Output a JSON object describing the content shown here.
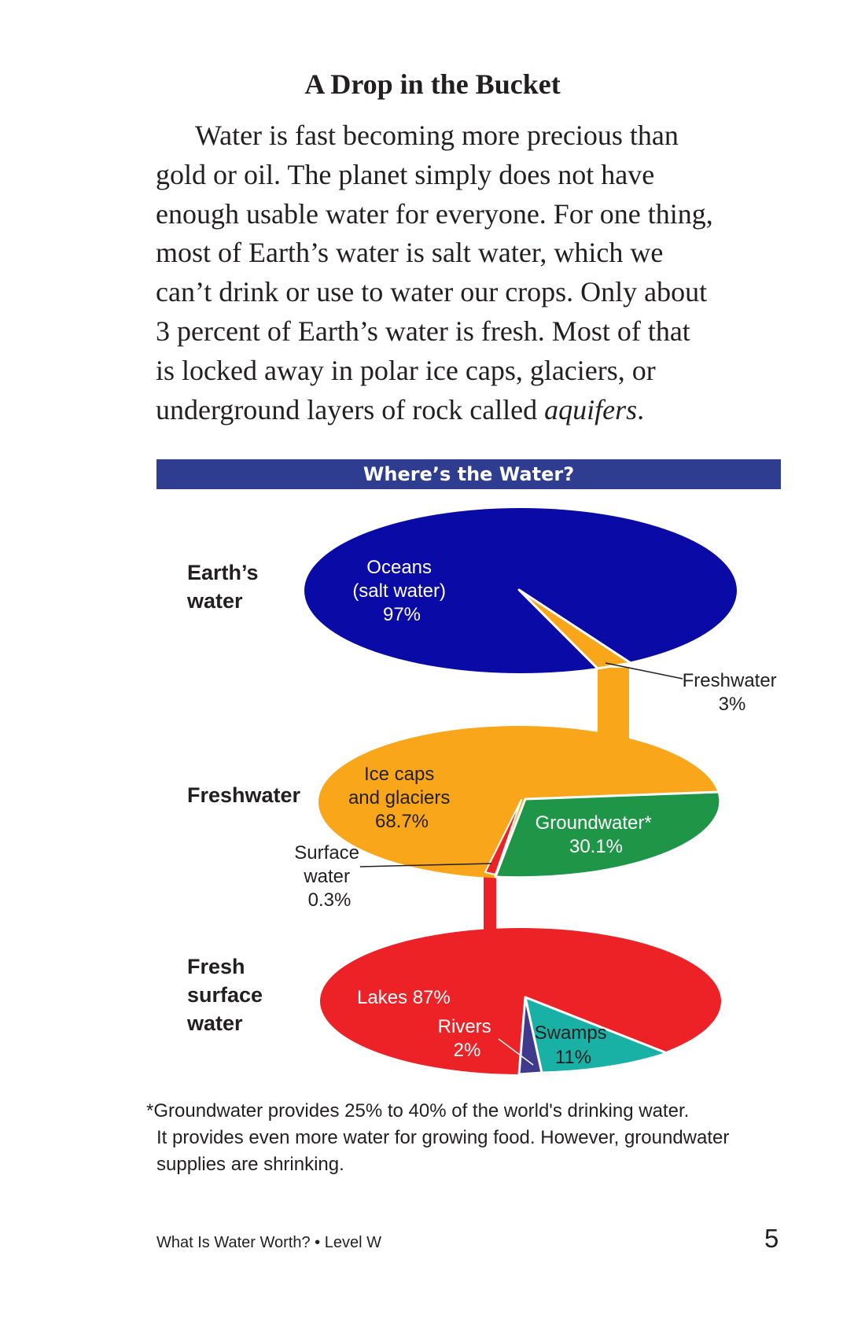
{
  "heading": "A Drop in the Bucket",
  "body": {
    "lines": [
      "Water is fast becoming more precious than",
      "gold or oil. The planet simply does not have",
      "enough usable water for everyone. For one thing,",
      "most of Earth’s water is salt water, which we",
      "can’t drink or use to water our crops. Only about",
      "3 percent of Earth’s water is fresh. Most of that",
      "is locked away in polar ice caps, glaciers, or"
    ],
    "last_line_start": "underground layers of rock called ",
    "last_line_term": "aquifers",
    "last_line_end": "."
  },
  "chart": {
    "title": "Where’s the Water?",
    "colors": {
      "salt": "#0a0aa6",
      "fresh": "#faa61a",
      "ground": "#1f9647",
      "surface": "#ec2227",
      "rivers": "#3f3a8e",
      "swamps": "#19b1a6"
    },
    "row_labels": {
      "earth_line1": "Earth’s",
      "earth_line2": "water",
      "fresh": "Freshwater",
      "surface_line1": "Fresh",
      "surface_line2": "surface",
      "surface_line3": "water"
    },
    "earth": {
      "oceans_line1": "Oceans",
      "oceans_line2": "(salt water)",
      "oceans_pct": "97%",
      "fresh_name": "Freshwater",
      "fresh_pct": "3%"
    },
    "freshwater": {
      "ice_line1": "Ice caps",
      "ice_line2": "and glaciers",
      "ice_pct": "68.7%",
      "ground_name": "Groundwater*",
      "ground_pct": "30.1%",
      "surface_line1": "Surface",
      "surface_line2": "water",
      "surface_pct": "0.3%"
    },
    "surface": {
      "lakes": "Lakes 87%",
      "rivers_name": "Rivers",
      "rivers_pct": "2%",
      "swamps_name": "Swamps",
      "swamps_pct": "11%"
    }
  },
  "chart_data": [
    {
      "type": "pie",
      "title": "Earth’s water",
      "labels": [
        "Oceans (salt water)",
        "Freshwater"
      ],
      "values": [
        97,
        3
      ]
    },
    {
      "type": "pie",
      "title": "Freshwater",
      "labels": [
        "Ice caps and glaciers",
        "Groundwater*",
        "Surface water"
      ],
      "values": [
        68.7,
        30.1,
        0.3
      ]
    },
    {
      "type": "pie",
      "title": "Fresh surface water",
      "labels": [
        "Lakes",
        "Rivers",
        "Swamps"
      ],
      "values": [
        87,
        2,
        11
      ]
    }
  ],
  "footnote": {
    "line1": "*Groundwater provides 25% to 40% of the world's drinking water.",
    "line2": "It provides even more water for growing food. However, groundwater",
    "line3": "supplies are shrinking."
  },
  "footer": {
    "book": "What Is Water Worth? • Level W",
    "page": "5"
  }
}
